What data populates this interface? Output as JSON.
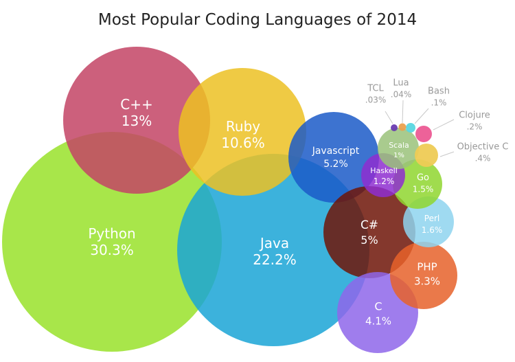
{
  "chart_data": {
    "type": "bubble",
    "title": "Most Popular Coding Languages of 2014",
    "unit": "%",
    "series": [
      {
        "name": "Python",
        "value": 30.3,
        "label": "30.3%",
        "color": "#99e22a",
        "label_color": "#ffffff"
      },
      {
        "name": "Java",
        "value": 22.2,
        "label": "22.2%",
        "color": "#1aa4d6",
        "label_color": "#ffffff"
      },
      {
        "name": "C++",
        "value": 13,
        "label": "13%",
        "color": "#c34465",
        "label_color": "#ffffff"
      },
      {
        "name": "Ruby",
        "value": 10.6,
        "label": "10.6%",
        "color": "#ecc123",
        "label_color": "#ffffff"
      },
      {
        "name": "Javascript",
        "value": 5.2,
        "label": "5.2%",
        "color": "#1b5ac8",
        "label_color": "#ffffff"
      },
      {
        "name": "C#",
        "value": 5,
        "label": "5%",
        "color": "#6f1508",
        "label_color": "#ffffff"
      },
      {
        "name": "C",
        "value": 4.1,
        "label": "4.1%",
        "color": "#8e66ea",
        "label_color": "#ffffff"
      },
      {
        "name": "PHP",
        "value": 3.3,
        "label": "3.3%",
        "color": "#e6622a",
        "label_color": "#ffffff"
      },
      {
        "name": "Perl",
        "value": 1.6,
        "label": "1.6%",
        "color": "#8ed3ee",
        "label_color": "#ffffff"
      },
      {
        "name": "Go",
        "value": 1.5,
        "label": "1.5%",
        "color": "#8fd62f",
        "label_color": "#ffffff"
      },
      {
        "name": "Haskell",
        "value": 1.2,
        "label": "1.2%",
        "color": "#8e2ed0",
        "label_color": "#ffffff"
      },
      {
        "name": "Scala",
        "value": 1,
        "label": "1%",
        "color": "#9ac27a",
        "label_color": "#ffffff"
      },
      {
        "name": "Objective C",
        "value": 0.4,
        "label": ".4%",
        "color": "#eecb55",
        "label_color": "#999999"
      },
      {
        "name": "Clojure",
        "value": 0.2,
        "label": ".2%",
        "color": "#ec5a93",
        "label_color": "#999999"
      },
      {
        "name": "Bash",
        "value": 0.1,
        "label": ".1%",
        "color": "#59d6e0",
        "label_color": "#999999"
      },
      {
        "name": "Lua",
        "value": 0.04,
        "label": ".04%",
        "color": "#eaa04f",
        "label_color": "#999999"
      },
      {
        "name": "TCL",
        "value": 0.03,
        "label": ".03%",
        "color": "#6a3bb0",
        "label_color": "#999999"
      }
    ]
  }
}
